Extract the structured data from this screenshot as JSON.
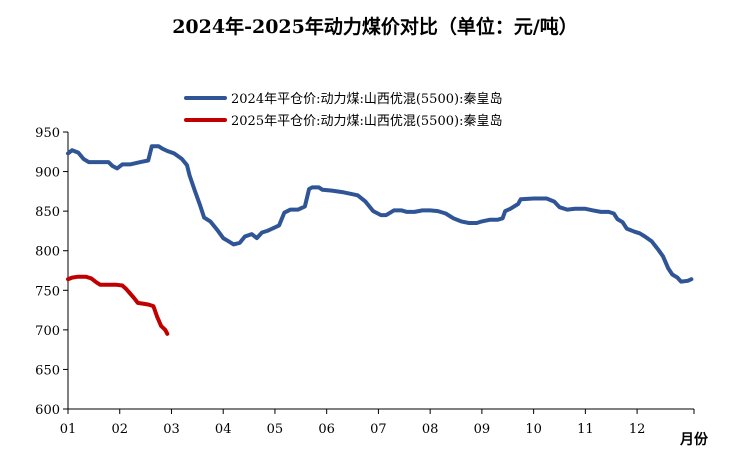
{
  "chart_data": {
    "type": "line",
    "title": "2024年-2025年动力煤价对比（单位：元/吨）",
    "xlabel": "月份",
    "ylabel": "",
    "x_categories": [
      "01",
      "02",
      "03",
      "04",
      "05",
      "06",
      "07",
      "08",
      "09",
      "10",
      "11",
      "12"
    ],
    "yticks": [
      600,
      650,
      700,
      750,
      800,
      850,
      900,
      950
    ],
    "ylim": [
      600,
      950
    ],
    "grid": false,
    "legend_position": "top",
    "series": [
      {
        "name": "2024年平仓价:动力煤:山西优混(5500):秦皇岛",
        "color": "#2f5597",
        "points": [
          [
            1.0,
            923
          ],
          [
            1.08,
            927
          ],
          [
            1.2,
            924
          ],
          [
            1.3,
            916
          ],
          [
            1.4,
            912
          ],
          [
            1.6,
            912
          ],
          [
            1.78,
            912
          ],
          [
            1.86,
            907
          ],
          [
            1.95,
            904
          ],
          [
            2.05,
            909
          ],
          [
            2.2,
            909
          ],
          [
            2.4,
            912
          ],
          [
            2.55,
            914
          ],
          [
            2.62,
            932
          ],
          [
            2.75,
            932
          ],
          [
            2.82,
            929
          ],
          [
            2.92,
            926
          ],
          [
            3.05,
            923
          ],
          [
            3.2,
            916
          ],
          [
            3.3,
            908
          ],
          [
            3.35,
            895
          ],
          [
            3.45,
            876
          ],
          [
            3.55,
            858
          ],
          [
            3.63,
            842
          ],
          [
            3.75,
            837
          ],
          [
            3.9,
            825
          ],
          [
            4.0,
            816
          ],
          [
            4.1,
            812
          ],
          [
            4.2,
            808
          ],
          [
            4.32,
            810
          ],
          [
            4.42,
            818
          ],
          [
            4.55,
            821
          ],
          [
            4.65,
            816
          ],
          [
            4.75,
            823
          ],
          [
            4.85,
            825
          ],
          [
            4.95,
            828
          ],
          [
            5.08,
            832
          ],
          [
            5.18,
            848
          ],
          [
            5.3,
            852
          ],
          [
            5.45,
            852
          ],
          [
            5.58,
            856
          ],
          [
            5.66,
            878
          ],
          [
            5.72,
            880
          ],
          [
            5.85,
            880
          ],
          [
            5.92,
            877
          ],
          [
            6.1,
            876
          ],
          [
            6.3,
            874
          ],
          [
            6.45,
            872
          ],
          [
            6.6,
            870
          ],
          [
            6.75,
            862
          ],
          [
            6.9,
            850
          ],
          [
            7.05,
            845
          ],
          [
            7.15,
            845
          ],
          [
            7.3,
            851
          ],
          [
            7.45,
            851
          ],
          [
            7.55,
            849
          ],
          [
            7.7,
            849
          ],
          [
            7.85,
            851
          ],
          [
            8.0,
            851
          ],
          [
            8.15,
            850
          ],
          [
            8.3,
            847
          ],
          [
            8.45,
            841
          ],
          [
            8.6,
            837
          ],
          [
            8.75,
            835
          ],
          [
            8.9,
            835
          ],
          [
            9.0,
            837
          ],
          [
            9.15,
            839
          ],
          [
            9.3,
            839
          ],
          [
            9.4,
            841
          ],
          [
            9.45,
            850
          ],
          [
            9.55,
            853
          ],
          [
            9.7,
            859
          ],
          [
            9.75,
            865
          ],
          [
            10.0,
            866
          ],
          [
            10.25,
            866
          ],
          [
            10.4,
            862
          ],
          [
            10.5,
            855
          ],
          [
            10.65,
            852
          ],
          [
            10.8,
            853
          ],
          [
            11.0,
            853
          ],
          [
            11.15,
            851
          ],
          [
            11.3,
            849
          ],
          [
            11.45,
            849
          ],
          [
            11.55,
            847
          ],
          [
            11.62,
            840
          ],
          [
            11.72,
            836
          ],
          [
            11.8,
            828
          ],
          [
            11.95,
            824
          ],
          [
            12.05,
            822
          ],
          [
            12.15,
            818
          ],
          [
            12.28,
            812
          ],
          [
            12.4,
            802
          ],
          [
            12.5,
            793
          ],
          [
            12.6,
            778
          ],
          [
            12.68,
            770
          ],
          [
            12.78,
            766
          ],
          [
            12.85,
            761
          ],
          [
            12.98,
            762
          ],
          [
            13.05,
            764
          ]
        ]
      },
      {
        "name": "2025年平仓价:动力煤:山西优混(5500):秦皇岛",
        "color": "#c00000",
        "points": [
          [
            1.0,
            764
          ],
          [
            1.08,
            766
          ],
          [
            1.18,
            767
          ],
          [
            1.35,
            767
          ],
          [
            1.45,
            765
          ],
          [
            1.55,
            760
          ],
          [
            1.62,
            757
          ],
          [
            1.8,
            757
          ],
          [
            1.92,
            757
          ],
          [
            2.05,
            756
          ],
          [
            2.12,
            752
          ],
          [
            2.2,
            746
          ],
          [
            2.28,
            740
          ],
          [
            2.35,
            734
          ],
          [
            2.55,
            732
          ],
          [
            2.65,
            730
          ],
          [
            2.72,
            717
          ],
          [
            2.8,
            705
          ],
          [
            2.88,
            700
          ],
          [
            2.92,
            695
          ]
        ]
      }
    ]
  }
}
